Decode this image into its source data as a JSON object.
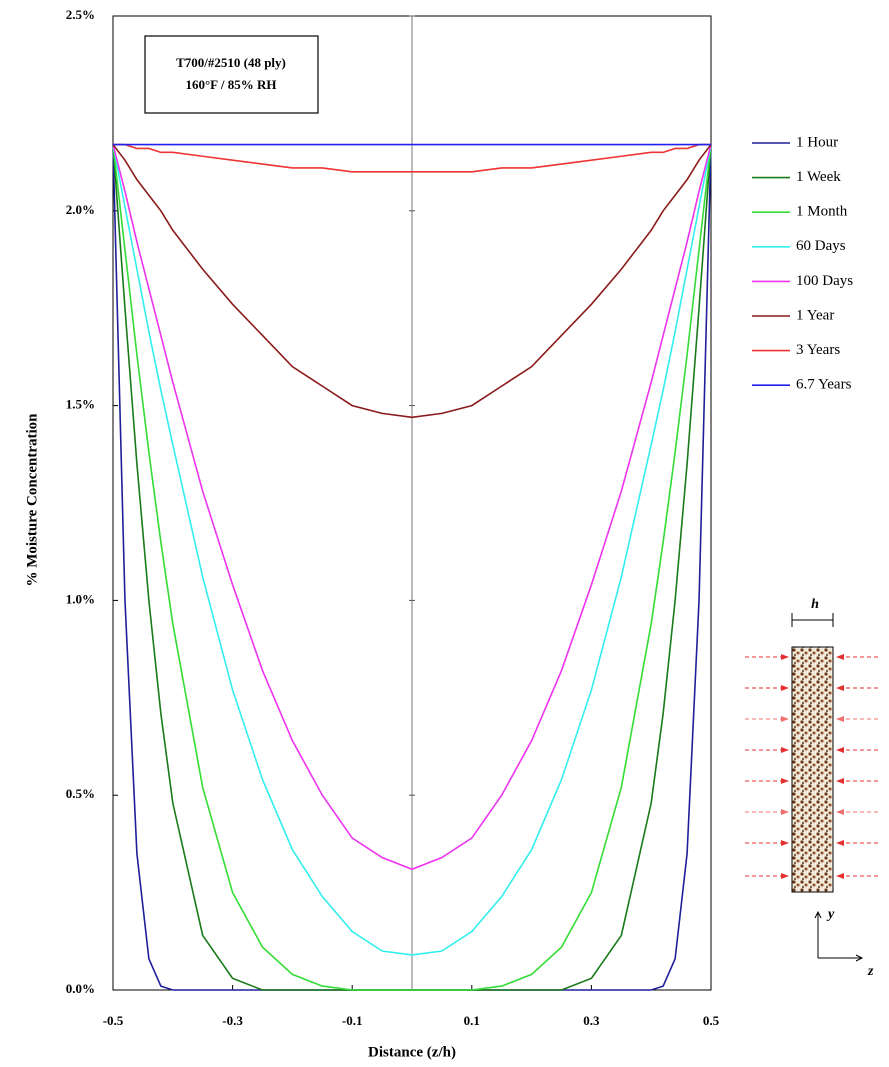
{
  "chart_data": {
    "type": "line",
    "xlabel": "Distance (z/h)",
    "ylabel": "% Moisture Concentration",
    "annotation": [
      "T700/#2510 (48 ply)",
      "160°F / 85% RH"
    ],
    "inset_labels": {
      "width": "h",
      "vertical": "y",
      "horizontal": "z"
    },
    "x": [
      -0.5,
      -0.48,
      -0.46,
      -0.44,
      -0.42,
      -0.4,
      -0.35,
      -0.3,
      -0.25,
      -0.2,
      -0.15,
      -0.1,
      -0.05,
      0,
      0.05,
      0.1,
      0.15,
      0.2,
      0.25,
      0.3,
      0.35,
      0.4,
      0.42,
      0.44,
      0.46,
      0.48,
      0.5
    ],
    "xlim": [
      -0.5,
      0.5
    ],
    "xticks": [
      -0.5,
      -0.3,
      -0.1,
      0.1,
      0.3,
      0.5
    ],
    "ylim": [
      0,
      2.5
    ],
    "yticks": [
      {
        "value": 0,
        "label": "0.0%"
      },
      {
        "value": 0.5,
        "label": "0.5%"
      },
      {
        "value": 1,
        "label": "1.0%"
      },
      {
        "value": 1.5,
        "label": "1.5%"
      },
      {
        "value": 2,
        "label": "2.0%"
      },
      {
        "value": 2.5,
        "label": "2.5%"
      }
    ],
    "legend": "right",
    "series": [
      {
        "name": "1 Hour",
        "color": "#1f1f9a",
        "values": [
          2.17,
          1.0,
          0.35,
          0.08,
          0.01,
          0,
          0,
          0,
          0,
          0,
          0,
          0,
          0,
          0,
          0,
          0,
          0,
          0,
          0,
          0,
          0,
          0,
          0.01,
          0.08,
          0.35,
          1.0,
          2.17
        ]
      },
      {
        "name": "1 Week",
        "color": "#1a7a1a",
        "values": [
          2.17,
          1.75,
          1.35,
          1.0,
          0.71,
          0.48,
          0.14,
          0.03,
          0,
          0,
          0,
          0,
          0,
          0,
          0,
          0,
          0,
          0,
          0,
          0.03,
          0.14,
          0.48,
          0.71,
          1.0,
          1.35,
          1.75,
          2.17
        ]
      },
      {
        "name": "1 Month",
        "color": "#33dd33",
        "values": [
          2.17,
          1.9,
          1.63,
          1.38,
          1.15,
          0.94,
          0.52,
          0.25,
          0.11,
          0.04,
          0.01,
          0,
          0,
          0,
          0,
          0,
          0.01,
          0.04,
          0.11,
          0.25,
          0.52,
          0.94,
          1.15,
          1.38,
          1.63,
          1.9,
          2.17
        ]
      },
      {
        "name": "60 Days",
        "color": "#33eeee",
        "values": [
          2.17,
          2.01,
          1.85,
          1.69,
          1.54,
          1.4,
          1.06,
          0.77,
          0.54,
          0.36,
          0.24,
          0.15,
          0.1,
          0.09,
          0.1,
          0.15,
          0.24,
          0.36,
          0.54,
          0.77,
          1.06,
          1.4,
          1.54,
          1.69,
          1.85,
          2.01,
          2.17
        ]
      },
      {
        "name": "100 Days",
        "color": "#ee33ee",
        "values": [
          2.17,
          2.05,
          1.92,
          1.8,
          1.68,
          1.56,
          1.28,
          1.04,
          0.82,
          0.64,
          0.5,
          0.39,
          0.34,
          0.31,
          0.34,
          0.39,
          0.5,
          0.64,
          0.82,
          1.04,
          1.28,
          1.56,
          1.68,
          1.8,
          1.92,
          2.05,
          2.17
        ]
      },
      {
        "name": "1 Year",
        "color": "#8b1a1a",
        "values": [
          2.17,
          2.13,
          2.08,
          2.04,
          2.0,
          1.95,
          1.85,
          1.76,
          1.68,
          1.6,
          1.55,
          1.5,
          1.48,
          1.47,
          1.48,
          1.5,
          1.55,
          1.6,
          1.68,
          1.76,
          1.85,
          1.95,
          2.0,
          2.04,
          2.08,
          2.13,
          2.17
        ]
      },
      {
        "name": "3 Years",
        "color": "#ee3333",
        "values": [
          2.17,
          2.17,
          2.16,
          2.16,
          2.15,
          2.15,
          2.14,
          2.13,
          2.12,
          2.11,
          2.11,
          2.1,
          2.1,
          2.1,
          2.1,
          2.1,
          2.11,
          2.11,
          2.12,
          2.13,
          2.14,
          2.15,
          2.15,
          2.16,
          2.16,
          2.17,
          2.17
        ]
      },
      {
        "name": "6.7 Years",
        "color": "#2222ee",
        "values": [
          2.17,
          2.17,
          2.17,
          2.17,
          2.17,
          2.17,
          2.17,
          2.17,
          2.17,
          2.17,
          2.17,
          2.17,
          2.17,
          2.17,
          2.17,
          2.17,
          2.17,
          2.17,
          2.17,
          2.17,
          2.17,
          2.17,
          2.17,
          2.17,
          2.17,
          2.17,
          2.17
        ]
      }
    ]
  }
}
